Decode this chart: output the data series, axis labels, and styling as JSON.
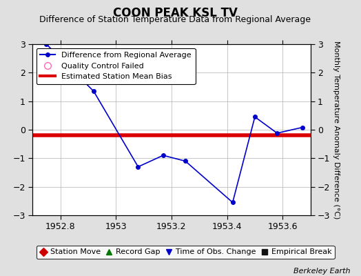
{
  "title": "COON PEAK KSL TV",
  "subtitle": "Difference of Station Temperature Data from Regional Average",
  "ylabel": "Monthly Temperature Anomaly Difference (°C)",
  "watermark": "Berkeley Earth",
  "xlim": [
    1952.7,
    1953.7
  ],
  "ylim": [
    -3,
    3
  ],
  "xticks": [
    1952.8,
    1953.0,
    1953.2,
    1953.4,
    1953.6
  ],
  "yticks": [
    -3,
    -2,
    -1,
    0,
    1,
    2,
    3
  ],
  "bias_value": -0.2,
  "data_x": [
    1952.75,
    1952.92,
    1953.08,
    1953.17,
    1953.25,
    1953.42,
    1953.5,
    1953.58,
    1953.67
  ],
  "data_y": [
    3.0,
    1.35,
    -1.3,
    -0.9,
    -1.1,
    -2.55,
    0.45,
    -0.12,
    0.08
  ],
  "line_color": "#0000cc",
  "line_width": 1.2,
  "marker_size": 4,
  "bias_color": "#dd0000",
  "bias_linewidth": 4,
  "background_color": "#e0e0e0",
  "plot_bg_color": "#ffffff",
  "grid_color": "#b0b0b0",
  "legend1_entries": [
    {
      "label": "Difference from Regional Average",
      "color": "#0000cc"
    },
    {
      "label": "Quality Control Failed",
      "color": "#ff69b4"
    },
    {
      "label": "Estimated Station Mean Bias",
      "color": "#dd0000"
    }
  ],
  "legend2_entries": [
    {
      "label": "Station Move",
      "color": "#cc0000",
      "marker": "D"
    },
    {
      "label": "Record Gap",
      "color": "#007700",
      "marker": "^"
    },
    {
      "label": "Time of Obs. Change",
      "color": "#0000cc",
      "marker": "v"
    },
    {
      "label": "Empirical Break",
      "color": "#111111",
      "marker": "s"
    }
  ],
  "title_fontsize": 12,
  "subtitle_fontsize": 9,
  "tick_fontsize": 9,
  "axis_label_fontsize": 8,
  "legend_fontsize": 8,
  "legend2_fontsize": 8
}
